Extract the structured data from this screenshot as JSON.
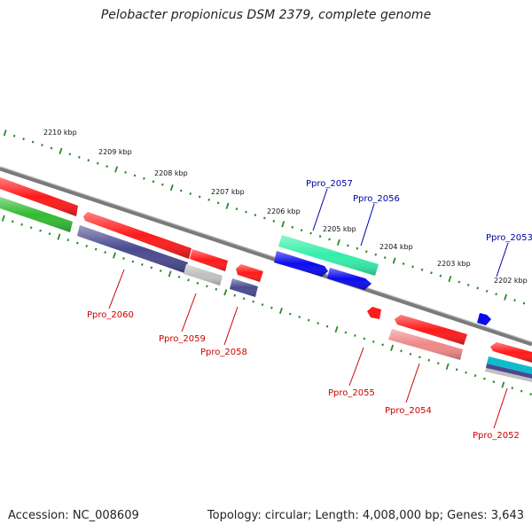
{
  "title": "Pelobacter propionicus DSM 2379, complete genome",
  "accession": "Accession: NC_008609",
  "summary": "Topology: circular; Length: 4,008,000 bp; Genes: 3,643",
  "scale_labels": [
    "2210 kbp",
    "2209 kbp",
    "2208 kbp",
    "2207 kbp",
    "2206 kbp",
    "2205 kbp",
    "2204 kbp",
    "2203 kbp",
    "2202 kbp"
  ],
  "forward_gene_labels": [
    "Ppro_2057",
    "Ppro_2056",
    "Ppro_2053"
  ],
  "reverse_gene_labels": [
    "Ppro_2060",
    "Ppro_2059",
    "Ppro_2058",
    "Ppro_2055",
    "Ppro_2054",
    "Ppro_2052"
  ],
  "colors": {
    "forward_label": "#0000aa",
    "reverse_label": "#cc0000",
    "tick": "#2a8a2a",
    "backbone": "#7a7a7a",
    "red_gene": "#ff1a1a",
    "blue_gene": "#0a0aee",
    "teal_gene": "#33eeaa",
    "green_gene": "#33bb33",
    "navy_feature": "#4a4a90",
    "grey_feature": "#c0c0c0",
    "pink_feature": "#ee8888",
    "cyan_feature": "#11bbcc"
  }
}
